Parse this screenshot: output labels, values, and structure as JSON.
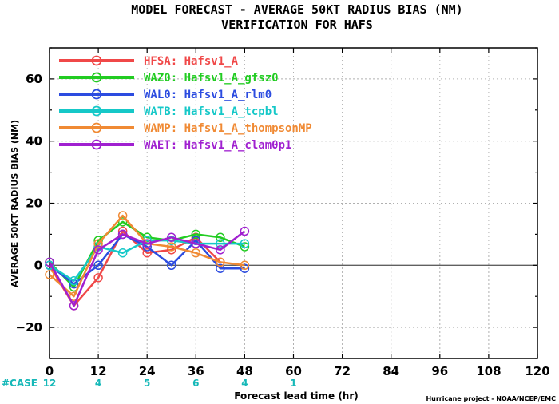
{
  "chart_data": {
    "type": "line",
    "title": "MODEL FORECAST - AVERAGE 50KT RADIUS BIAS (NM)",
    "subtitle": "VERIFICATION FOR HAFS",
    "xlabel": "Forecast lead time (hr)",
    "ylabel": "AVERAGE 50KT RADIUS BIAS (NM)",
    "xlim": [
      0,
      120
    ],
    "ylim": [
      -30,
      70
    ],
    "x_ticks": [
      "0",
      "12",
      "24",
      "36",
      "48",
      "60",
      "72",
      "84",
      "96",
      "108",
      "120"
    ],
    "y_ticks": [
      "60",
      "40",
      "20",
      "0",
      "-20"
    ],
    "grid": true,
    "legend_position": "top-left",
    "case_label": "#CASE",
    "case_color": "#16b8b8",
    "case_counts": [
      {
        "x": 0,
        "label": "12"
      },
      {
        "x": 12,
        "label": "4"
      },
      {
        "x": 24,
        "label": "5"
      },
      {
        "x": 36,
        "label": "6"
      },
      {
        "x": 48,
        "label": "4"
      },
      {
        "x": 60,
        "label": "1"
      }
    ],
    "credit": "Hurricane project - NOAA/NCEP/EMC",
    "x": [
      0,
      6,
      12,
      18,
      24,
      30,
      36,
      42,
      48
    ],
    "series": [
      {
        "code": "HFSA:",
        "name": "Hafsv1_A",
        "color": "#f04848",
        "values": [
          0,
          -13,
          -4,
          11,
          4,
          5,
          9,
          1,
          null
        ]
      },
      {
        "code": "WAZ0:",
        "name": "Hafsv1_A_gfsz0",
        "color": "#22cc22",
        "values": [
          1,
          -7,
          8,
          14,
          9,
          8,
          10,
          9,
          6
        ]
      },
      {
        "code": "WAL0:",
        "name": "Hafsv1_A_rlm0",
        "color": "#2c4ce0",
        "values": [
          0,
          -6,
          0,
          10,
          6,
          0,
          8,
          -1,
          -1
        ]
      },
      {
        "code": "WATB:",
        "name": "Hafsv1_A_tcpbl",
        "color": "#16c8c8",
        "values": [
          0,
          -5,
          6,
          4,
          8,
          8,
          7,
          7,
          7
        ]
      },
      {
        "code": "WAMP:",
        "name": "Hafsv1_A_thompsonMP",
        "color": "#f08a34",
        "values": [
          -3,
          -10,
          7,
          16,
          7,
          6,
          4,
          1,
          0
        ]
      },
      {
        "code": "WAET:",
        "name": "Hafsv1_A_clam0p1",
        "color": "#a020d0",
        "values": [
          1,
          -13,
          5,
          10,
          7,
          9,
          7,
          5,
          11
        ]
      }
    ]
  }
}
